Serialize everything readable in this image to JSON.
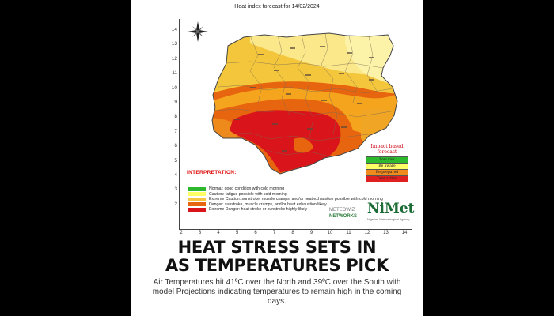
{
  "map": {
    "title": "Heat index forecast for 14/02/2024",
    "y_ticks": [
      "14",
      "13",
      "12",
      "11",
      "10",
      "9",
      "8",
      "7",
      "6",
      "5",
      "4",
      "3",
      "2"
    ],
    "x_ticks": [
      "2",
      "3",
      "4",
      "5",
      "6",
      "7",
      "8",
      "9",
      "10",
      "11",
      "12",
      "13",
      "14"
    ],
    "zone_colors": {
      "normal": "#2db82d",
      "caution": "#ffff99",
      "extreme_caution": "#f5c542",
      "danger": "#e8650f",
      "extreme_danger": "#d9141a"
    }
  },
  "interpretation": {
    "title": "INTERPRETATION:",
    "items": [
      {
        "label": "Normal: good condition with cold morning",
        "color": "#2db82d"
      },
      {
        "label": "Caution: fatigue possible  with cold morning",
        "color": "#ffff66"
      },
      {
        "label": "Extreme Caution: sunstroke, muscle cramps, and/or heat exhaustion possible  with cold morning",
        "color": "#f5c542"
      },
      {
        "label": "Danger: sunstroke, muscle cramps, and/or heat exhaustion likely",
        "color": "#e8650f"
      },
      {
        "label": "Extreme Danger: heat stroke or sunstroke highly likely",
        "color": "#d9141a"
      }
    ]
  },
  "impact_forecast": {
    "title": "Impact based forecast",
    "rows": [
      {
        "label": "Low risk",
        "color": "#2db82d"
      },
      {
        "label": "Be aware",
        "color": "#ffff66"
      },
      {
        "label": "Be prepared",
        "color": "#f08a1c"
      },
      {
        "label": "Take action",
        "color": "#e02020"
      }
    ]
  },
  "logos": {
    "partner_line1": "METEOWIZ",
    "partner_line2": "NETWORKS",
    "nimet": "NiMet",
    "nimet_sub": "Nigerian Meteorological Agency"
  },
  "headline": {
    "line1": "HEAT STRESS SETS IN",
    "line2": "AS TEMPERATURES PICK"
  },
  "subtext": "Air Temperatures hit 41ºC over the North and 39ºC over the South with model Projections indicating temperatures to remain high in the coming days."
}
